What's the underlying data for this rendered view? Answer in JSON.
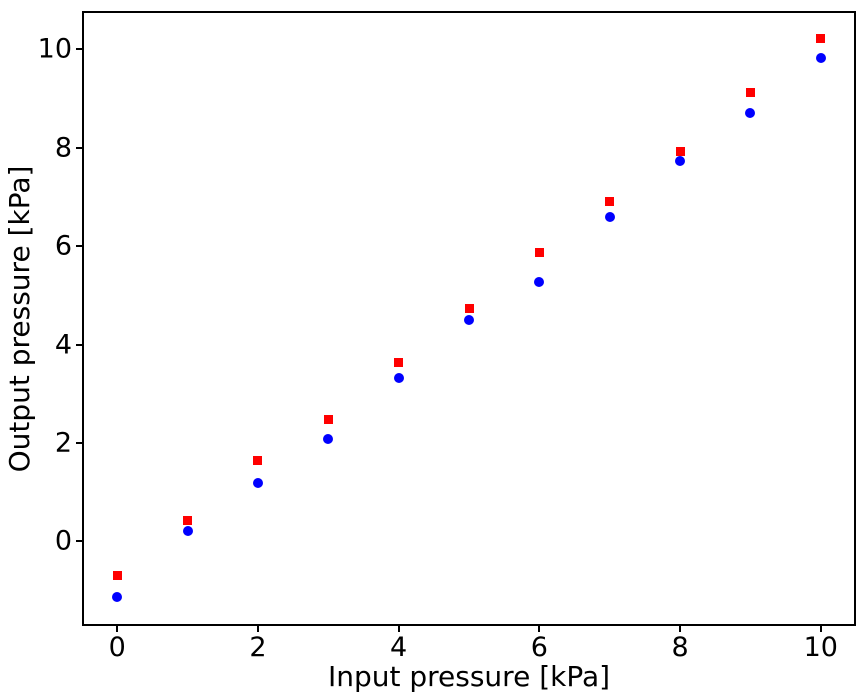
{
  "figure": {
    "background": "#ffffff",
    "axis_color": "#000000",
    "xlabel": "Input pressure [kPa]",
    "ylabel": "Output pressure [kPa]"
  },
  "chart_data": {
    "type": "scatter",
    "title": "",
    "xlabel": "Input pressure [kPa]",
    "ylabel": "Output pressure [kPa]",
    "x": [
      0,
      1,
      2,
      3,
      4,
      5,
      6,
      7,
      8,
      9,
      10
    ],
    "series": [
      {
        "name": "red-squares",
        "marker": "square",
        "color": "#ff0000",
        "values": [
          -0.7,
          0.42,
          1.65,
          2.47,
          3.64,
          4.73,
          5.88,
          6.91,
          7.93,
          9.13,
          10.22
        ]
      },
      {
        "name": "blue-circles",
        "marker": "circle",
        "color": "#0000ff",
        "values": [
          -1.14,
          0.21,
          1.18,
          2.09,
          3.33,
          4.49,
          5.27,
          6.6,
          7.74,
          8.7,
          9.82
        ]
      }
    ],
    "xlim": [
      -0.5,
      10.5
    ],
    "ylim": [
      -1.72,
      10.78
    ],
    "x_tick_values": [
      0,
      2,
      4,
      6,
      8,
      10
    ],
    "y_tick_values": [
      0,
      2,
      4,
      6,
      8,
      10
    ],
    "x_tick_labels": [
      "0",
      "2",
      "4",
      "6",
      "8",
      "10"
    ],
    "y_tick_labels": [
      "0",
      "2",
      "4",
      "6",
      "8",
      "10"
    ],
    "grid": false,
    "legend": null
  }
}
